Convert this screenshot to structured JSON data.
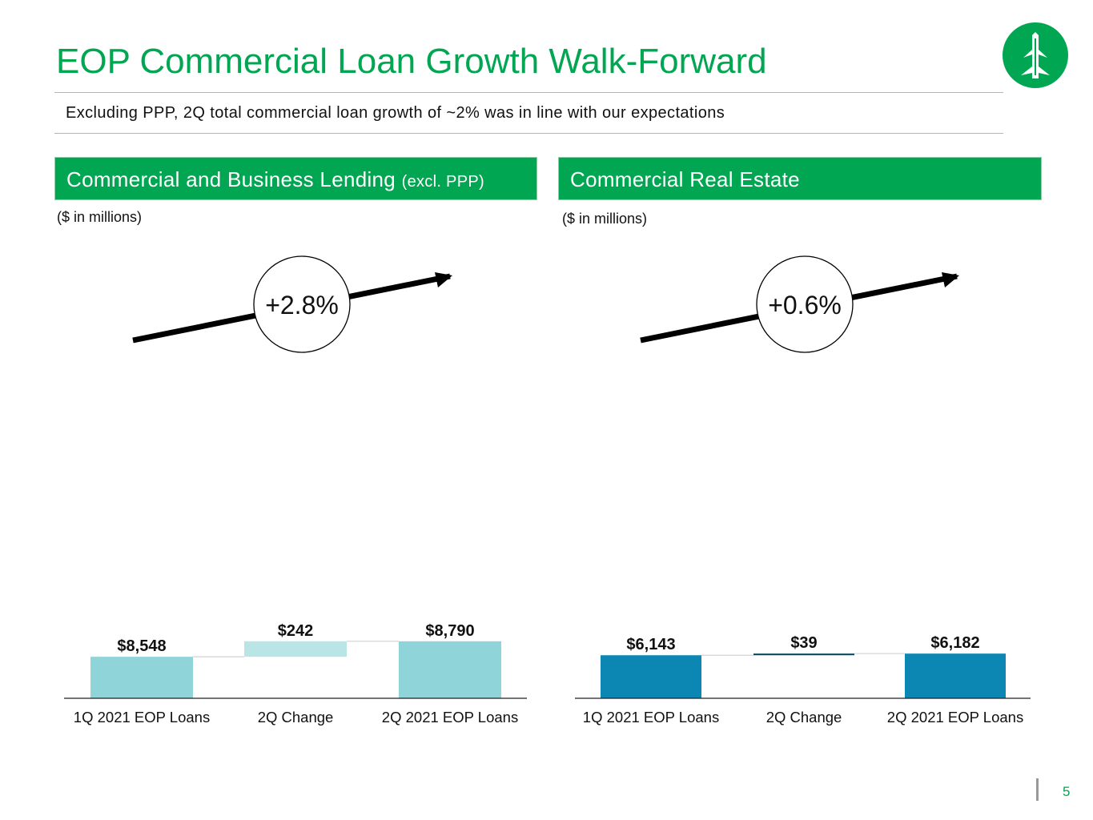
{
  "title": "EOP Commercial Loan Growth Walk-Forward",
  "subtitle": "Excluding PPP, 2Q total commercial loan growth of ~2% was in line with our expectations",
  "page_number": "5",
  "colors": {
    "brand_green": "#00a651",
    "cbl_bar": "#8fd4d8",
    "cbl_change": "#b9e5e6",
    "cre_bar": "#0c87b3",
    "cre_change": "#01445d"
  },
  "panels": [
    {
      "heading": "Commercial and Business Lending",
      "heading_suffix": "(excl. PPP)",
      "units": "($ in millions)",
      "growth": "+2.8%"
    },
    {
      "heading": "Commercial Real Estate",
      "heading_suffix": "",
      "units": "($ in millions)",
      "growth": "+0.6%"
    }
  ],
  "chart_data": [
    {
      "type": "bar",
      "subtype": "waterfall",
      "title": "Commercial and Business Lending (excl. PPP)",
      "ylabel": "$ in millions",
      "categories": [
        "1Q 2021 EOP Loans",
        "2Q Change",
        "2Q 2021 EOP Loans"
      ],
      "values": [
        8548,
        242,
        8790
      ],
      "data_labels": [
        "$8,548",
        "$242",
        "$8,790"
      ],
      "bar_roles": [
        "total",
        "change",
        "total"
      ],
      "axis_baseline": 0,
      "annotation": "+2.8%"
    },
    {
      "type": "bar",
      "subtype": "waterfall",
      "title": "Commercial Real Estate",
      "ylabel": "$ in millions",
      "categories": [
        "1Q 2021 EOP Loans",
        "2Q Change",
        "2Q 2021 EOP Loans"
      ],
      "values": [
        6143,
        39,
        6182
      ],
      "data_labels": [
        "$6,143",
        "$39",
        "$6,182"
      ],
      "bar_roles": [
        "total",
        "change",
        "total"
      ],
      "axis_baseline": 0,
      "annotation": "+0.6%"
    }
  ]
}
